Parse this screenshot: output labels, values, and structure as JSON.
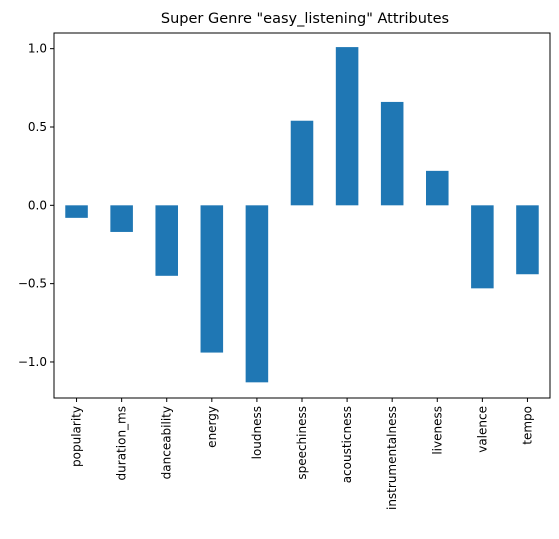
{
  "chart_data": {
    "type": "bar",
    "title": "Super Genre \"easy_listening\" Attributes",
    "xlabel": "",
    "ylabel": "",
    "categories": [
      "popularity",
      "duration_ms",
      "danceability",
      "energy",
      "loudness",
      "speechiness",
      "acousticness",
      "instrumentalness",
      "liveness",
      "valence",
      "tempo"
    ],
    "values": [
      -0.08,
      -0.17,
      -0.45,
      -0.94,
      -1.13,
      0.54,
      1.01,
      0.66,
      0.22,
      -0.53,
      -0.44
    ],
    "ylim": [
      -1.23,
      1.1
    ],
    "yticks": [
      -1.0,
      -0.5,
      0.0,
      0.5,
      1.0
    ],
    "ytick_labels": [
      "−1.0",
      "−0.5",
      "0.0",
      "0.5",
      "1.0"
    ],
    "bar_color": "#1f77b4",
    "grid": false,
    "legend": false
  }
}
